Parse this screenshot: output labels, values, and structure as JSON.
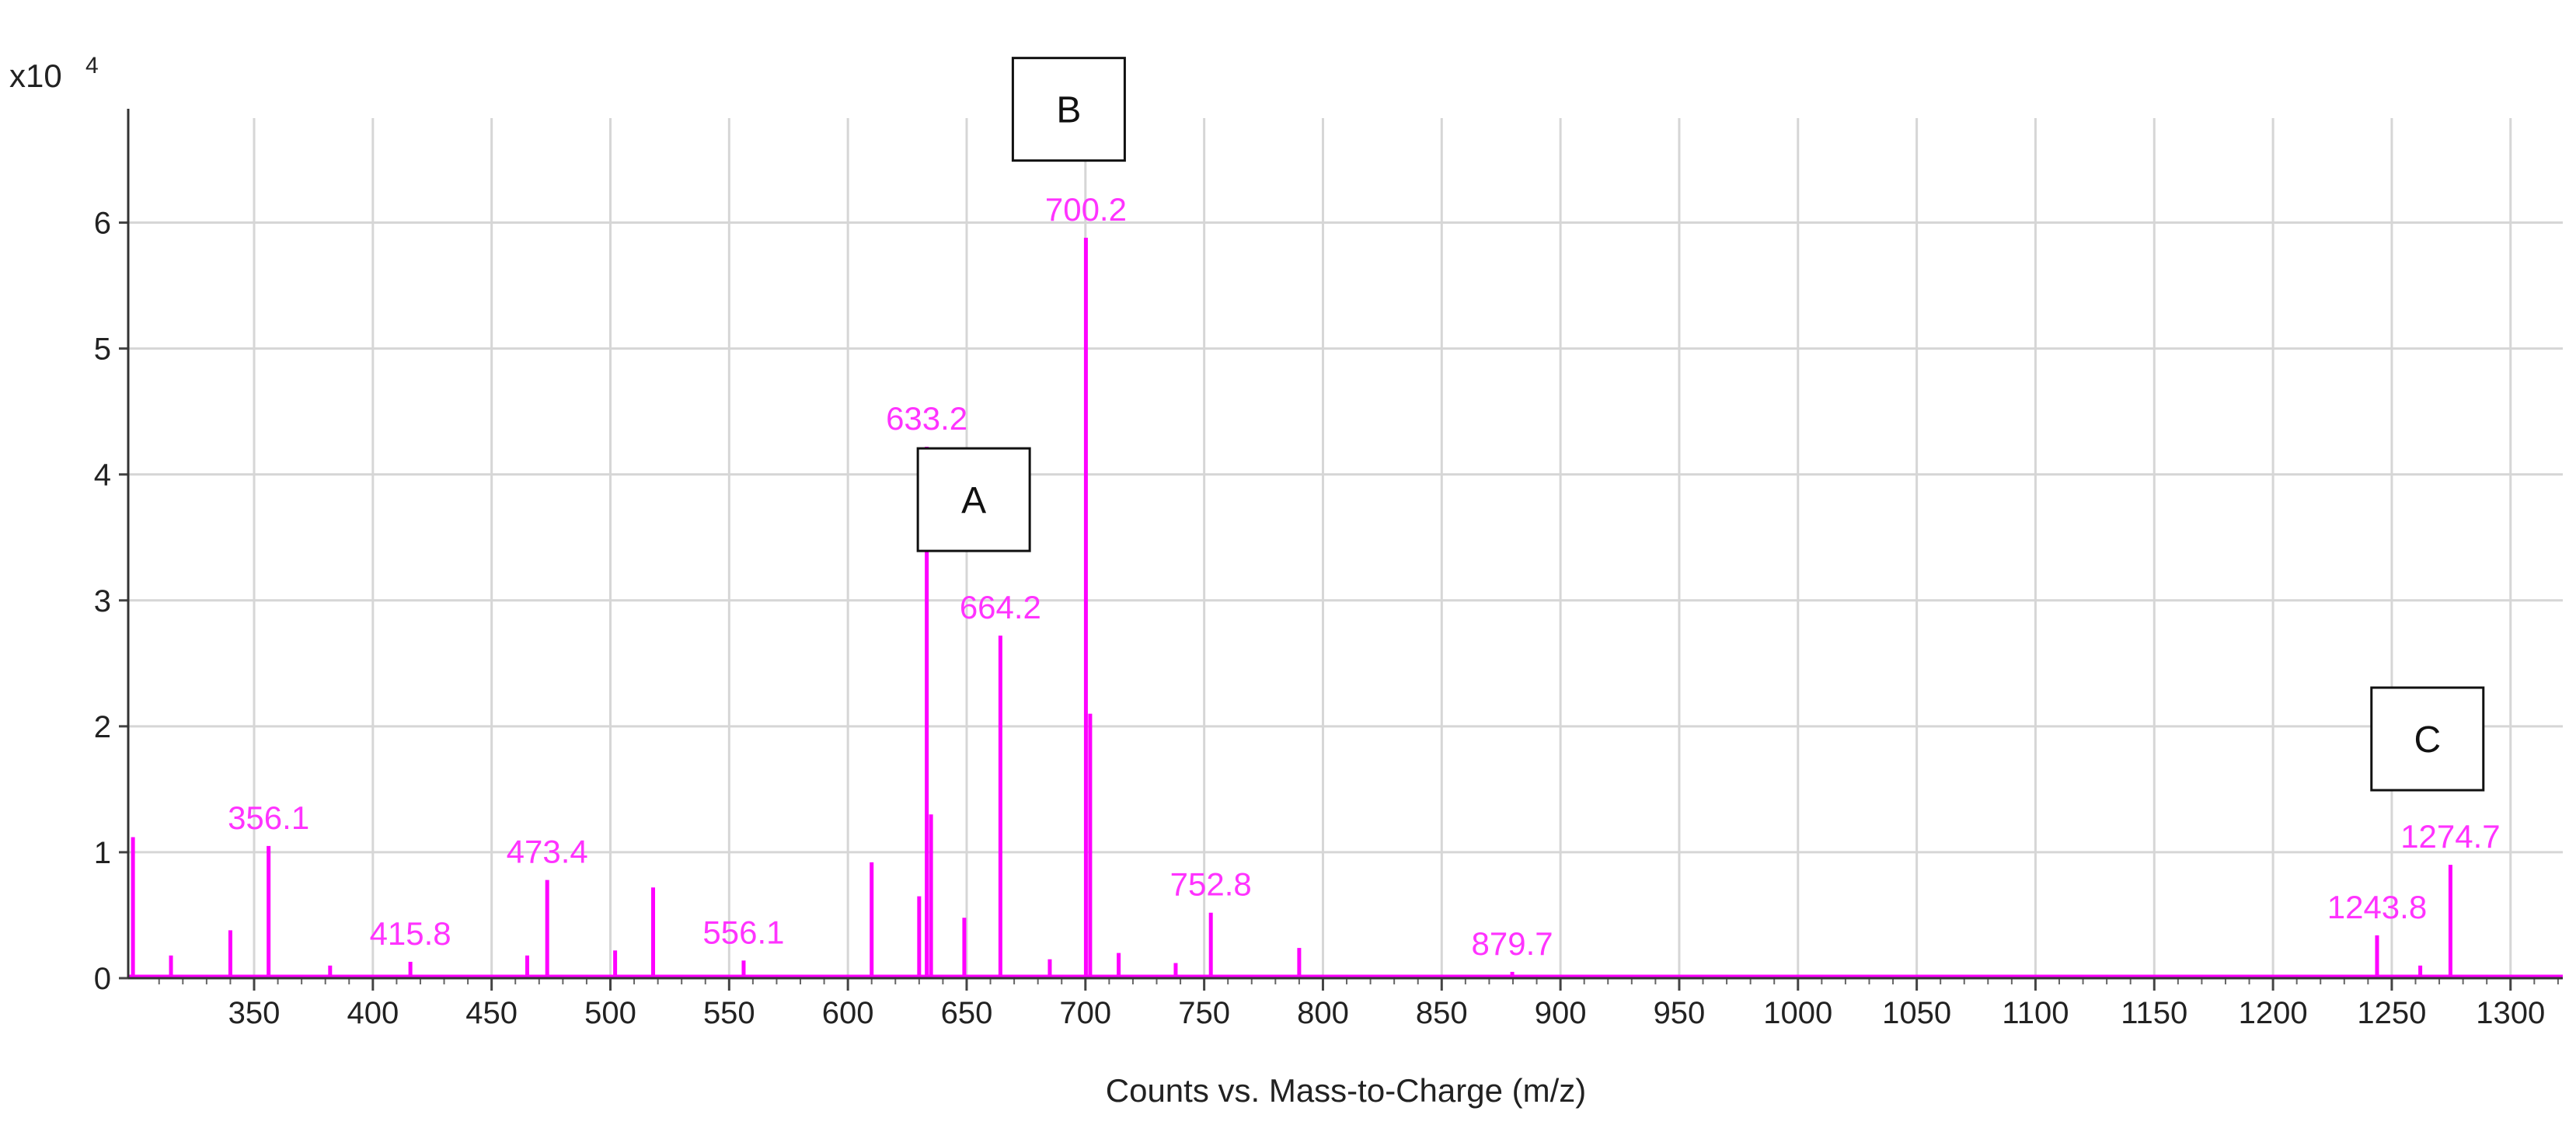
{
  "chart_data": {
    "type": "line",
    "xlabel": "Counts vs. Mass-to-Charge (m/z)",
    "ylabel": "",
    "y_scale_label": "x10",
    "y_scale_exponent": "4",
    "xlim": [
      297,
      1322
    ],
    "ylim": [
      0,
      6.83
    ],
    "x_ticks": [
      350,
      400,
      450,
      500,
      550,
      600,
      650,
      700,
      750,
      800,
      850,
      900,
      950,
      1000,
      1050,
      1100,
      1150,
      1200,
      1250,
      1300
    ],
    "y_ticks": [
      0,
      1,
      2,
      3,
      4,
      5,
      6
    ],
    "grid": true,
    "series_color": "#ff00ff",
    "label_color": "#ff33ff",
    "peaks": [
      {
        "mz": 299,
        "intensity": 1.12
      },
      {
        "mz": 315,
        "intensity": 0.18
      },
      {
        "mz": 340,
        "intensity": 0.38
      },
      {
        "mz": 356.1,
        "intensity": 1.05
      },
      {
        "mz": 382,
        "intensity": 0.1
      },
      {
        "mz": 415.8,
        "intensity": 0.13
      },
      {
        "mz": 465,
        "intensity": 0.18
      },
      {
        "mz": 473.4,
        "intensity": 0.78
      },
      {
        "mz": 502,
        "intensity": 0.22
      },
      {
        "mz": 518,
        "intensity": 0.72
      },
      {
        "mz": 556.1,
        "intensity": 0.14
      },
      {
        "mz": 610,
        "intensity": 0.92
      },
      {
        "mz": 630,
        "intensity": 0.65
      },
      {
        "mz": 633.2,
        "intensity": 4.22
      },
      {
        "mz": 635,
        "intensity": 1.3
      },
      {
        "mz": 649,
        "intensity": 0.48
      },
      {
        "mz": 664.2,
        "intensity": 2.72
      },
      {
        "mz": 685,
        "intensity": 0.15
      },
      {
        "mz": 700.2,
        "intensity": 5.88
      },
      {
        "mz": 702,
        "intensity": 2.1
      },
      {
        "mz": 714,
        "intensity": 0.2
      },
      {
        "mz": 738,
        "intensity": 0.12
      },
      {
        "mz": 752.8,
        "intensity": 0.52
      },
      {
        "mz": 790,
        "intensity": 0.24
      },
      {
        "mz": 879.7,
        "intensity": 0.05
      },
      {
        "mz": 1243.8,
        "intensity": 0.34
      },
      {
        "mz": 1262,
        "intensity": 0.1
      },
      {
        "mz": 1274.7,
        "intensity": 0.9
      }
    ],
    "peak_labels": [
      {
        "text": "356.1",
        "mz": 356.1,
        "intensity": 1.05
      },
      {
        "text": "415.8",
        "mz": 415.8,
        "intensity": 0.13
      },
      {
        "text": "473.4",
        "mz": 473.4,
        "intensity": 0.78
      },
      {
        "text": "556.1",
        "mz": 556.1,
        "intensity": 0.14
      },
      {
        "text": "633.2",
        "mz": 633.2,
        "intensity": 4.22
      },
      {
        "text": "664.2",
        "mz": 664.2,
        "intensity": 2.72
      },
      {
        "text": "700.2",
        "mz": 700.2,
        "intensity": 5.88
      },
      {
        "text": "752.8",
        "mz": 752.8,
        "intensity": 0.52
      },
      {
        "text": "879.7",
        "mz": 879.7,
        "intensity": 0.05
      },
      {
        "text": "1243.8",
        "mz": 1243.8,
        "intensity": 0.34
      },
      {
        "text": "1274.7",
        "mz": 1274.7,
        "intensity": 0.9
      }
    ],
    "annotation_boxes": [
      {
        "text": "A",
        "mz": 653,
        "intensity": 3.8
      },
      {
        "text": "B",
        "mz": 693,
        "intensity": 6.9
      },
      {
        "text": "C",
        "mz": 1265,
        "intensity": 1.9
      }
    ]
  }
}
